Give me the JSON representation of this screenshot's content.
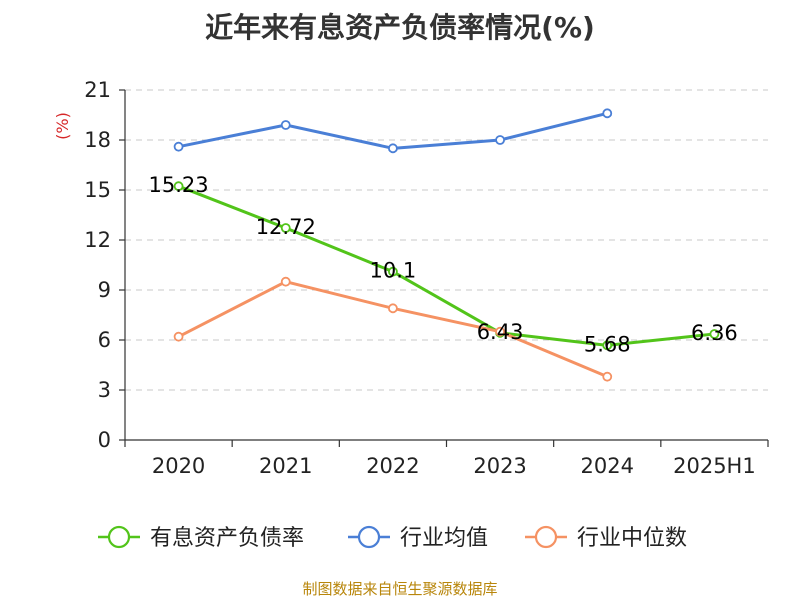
{
  "chart_data": {
    "type": "line",
    "title": "近年来有息资产负债率情况(%)",
    "ylabel": "(%)",
    "xlabel": "",
    "categories": [
      "2020",
      "2021",
      "2022",
      "2023",
      "2024",
      "2025H1"
    ],
    "ylim": [
      0,
      21
    ],
    "yticks": [
      0,
      3,
      6,
      9,
      12,
      15,
      18,
      21
    ],
    "grid": true,
    "legend_position": "bottom",
    "series": [
      {
        "name": "有息资产负债率",
        "color": "#52c41a",
        "values": [
          15.23,
          12.72,
          10.1,
          6.43,
          5.68,
          6.36
        ],
        "labels": [
          "15.23",
          "12.72",
          "10.1",
          "6.43",
          "5.68",
          "6.36"
        ],
        "show_labels": true
      },
      {
        "name": "行业均值",
        "color": "#4a7fd6",
        "values": [
          17.6,
          18.9,
          17.5,
          18.0,
          19.6,
          null
        ],
        "show_labels": false
      },
      {
        "name": "行业中位数",
        "color": "#f59263",
        "values": [
          6.2,
          9.5,
          7.9,
          6.5,
          3.8,
          null
        ],
        "show_labels": false
      }
    ]
  },
  "source": "制图数据来自恒生聚源数据库"
}
